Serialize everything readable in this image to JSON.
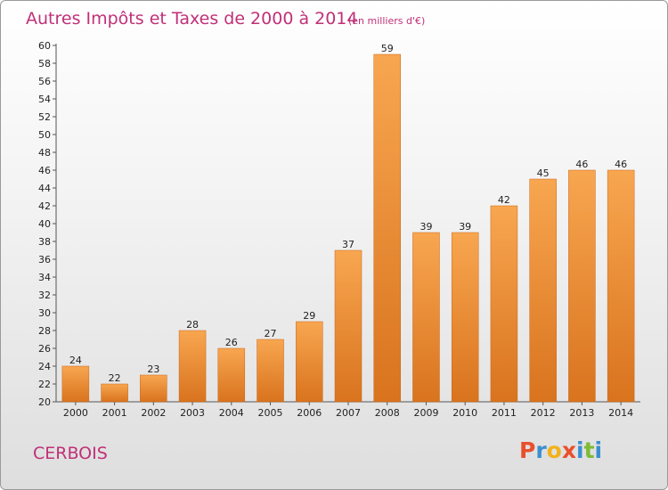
{
  "chart_data": {
    "type": "bar",
    "title": "Autres Impôts et Taxes de 2000 à 2014",
    "subtitle": "(en milliers d'€)",
    "categories": [
      "2000",
      "2001",
      "2002",
      "2003",
      "2004",
      "2005",
      "2006",
      "2007",
      "2008",
      "2009",
      "2010",
      "2011",
      "2012",
      "2013",
      "2014"
    ],
    "values": [
      24,
      22,
      23,
      28,
      26,
      27,
      29,
      37,
      59,
      39,
      39,
      42,
      45,
      46,
      46
    ],
    "ylim": [
      20,
      60
    ],
    "yticks": [
      20,
      22,
      24,
      26,
      28,
      30,
      32,
      34,
      36,
      38,
      40,
      42,
      44,
      46,
      48,
      50,
      52,
      54,
      56,
      58,
      60
    ],
    "grid": false,
    "bar_color": "#f0922e"
  },
  "commune": "CERBOIS",
  "logo": {
    "letters": [
      "P",
      "r",
      "o",
      "x",
      "i",
      "t",
      "i"
    ],
    "colors": [
      "#e8502c",
      "#3a8fd0",
      "#f2b21b",
      "#e8502c",
      "#3a8fd0",
      "#7dbb35",
      "#3a8fd0"
    ]
  }
}
